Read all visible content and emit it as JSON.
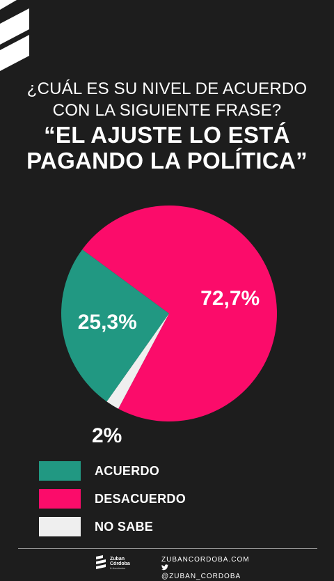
{
  "header": {
    "question_line1": "¿CUÁL ES SU NIVEL DE ACUERDO",
    "question_line2": "CON LA SIGUIENTE FRASE?",
    "quote_line1": "“EL AJUSTE LO ESTÁ",
    "quote_line2": "PAGANDO LA POLÍTICA”"
  },
  "colors": {
    "background": "#1d1d1d",
    "acuerdo": "#219882",
    "desacuerdo": "#fb0c6a",
    "no_sabe": "#efefef"
  },
  "chart_data": {
    "type": "pie",
    "title": "",
    "slices": [
      {
        "name": "ACUERDO",
        "value": 25.3,
        "label": "25,3%",
        "color": "#219882"
      },
      {
        "name": "DESACUERDO",
        "value": 72.7,
        "label": "72,7%",
        "color": "#fb0c6a"
      },
      {
        "name": "NO SABE",
        "value": 2,
        "label": "2%",
        "color": "#efefef"
      }
    ],
    "legend": "bottom-left"
  },
  "legend": {
    "items": [
      {
        "label": "ACUERDO",
        "color": "#219882"
      },
      {
        "label": "DESACUERDO",
        "color": "#fb0c6a"
      },
      {
        "label": "NO SABE",
        "color": "#efefef"
      }
    ]
  },
  "footer": {
    "brand_line1": "Zuban",
    "brand_line2": "Córdoba",
    "brand_line3": "& Asociados",
    "website": "ZUBANCORDOBA.COM",
    "twitter": "@ZUBAN_CORDOBA",
    "twitter_icon": "twitter-bird-icon",
    "logo_icon": "zuban-logo-icon"
  }
}
